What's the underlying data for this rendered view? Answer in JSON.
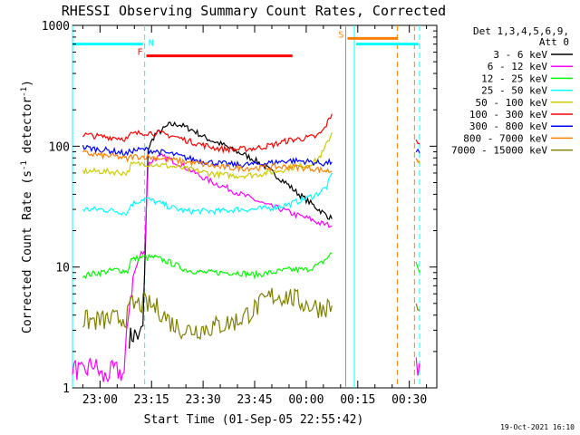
{
  "chart_data": {
    "type": "line",
    "title": "RHESSI Observing Summary Count Rates, Corrected",
    "xlabel": "Start Time (01-Sep-05 22:55:42)",
    "ylabel": "Corrected Count Rate (s⁻¹ detector⁻¹)",
    "ylabel_main": "Corrected Count Rate (s",
    "ylabel_sup1": "-1",
    "ylabel_mid": " detector",
    "ylabel_sup2": "-1",
    "ylabel_end": ")",
    "y_scale": "log",
    "ylim": [
      1,
      1000
    ],
    "x_unit": "minutes after 23:00 UT",
    "xlim": [
      -8,
      98
    ],
    "x_ticks": [
      {
        "value": 0,
        "label": "23:00"
      },
      {
        "value": 15,
        "label": "23:15"
      },
      {
        "value": 30,
        "label": "23:30"
      },
      {
        "value": 45,
        "label": "23:45"
      },
      {
        "value": 60,
        "label": "00:00"
      },
      {
        "value": 75,
        "label": "00:15"
      },
      {
        "value": 90,
        "label": "00:30"
      }
    ],
    "y_ticks": [
      {
        "value": 1,
        "label": "1"
      },
      {
        "value": 10,
        "label": "10"
      },
      {
        "value": 100,
        "label": "100"
      },
      {
        "value": 1000,
        "label": "1000"
      }
    ],
    "legend_header": [
      "Det 1,3,4,5,6,9,",
      "Att 0"
    ],
    "legend_placement": "right",
    "series": [
      {
        "name": "3 - 6 keV",
        "color": "#000000",
        "x": [
          8.5,
          10.5,
          11.5,
          12.5,
          13,
          14,
          16,
          18,
          20,
          23,
          25,
          27,
          30,
          33,
          36,
          39,
          42,
          45,
          48,
          51,
          54,
          57,
          60,
          63,
          65,
          67.5
        ],
        "values": [
          2.6,
          2.8,
          2.6,
          3.2,
          9,
          95,
          125,
          135,
          150,
          152,
          143,
          136,
          120,
          110,
          102,
          92,
          85,
          77,
          68,
          58,
          50,
          42,
          36,
          31,
          28,
          25
        ],
        "gap_after": []
      },
      {
        "name": "6 - 12 keV",
        "color": "#ff00ff",
        "x": [
          -8,
          -5,
          -2,
          1,
          4,
          7,
          8.5,
          10,
          12,
          13,
          14,
          16,
          18,
          20,
          23,
          26,
          29,
          33,
          37,
          41,
          45,
          49,
          53,
          57,
          61,
          64,
          67.5,
          92,
          93
        ],
        "values": [
          1.5,
          1.3,
          1.6,
          1.2,
          1.4,
          1.3,
          5,
          9,
          13,
          14,
          70,
          80,
          82,
          78,
          72,
          64,
          57,
          50,
          45,
          40,
          36,
          32,
          30,
          27,
          25,
          23,
          22,
          1.5,
          1.6
        ],
        "gap_after": [
          26
        ]
      },
      {
        "name": "12 - 25 keV",
        "color": "#00ff00",
        "x": [
          -5,
          0,
          5,
          8,
          9,
          12,
          16,
          20,
          25,
          30,
          35,
          40,
          45,
          50,
          55,
          60,
          64,
          67.5,
          92,
          93
        ],
        "values": [
          8.5,
          9,
          9.5,
          9.2,
          11.5,
          12,
          12,
          11,
          9.5,
          9,
          9,
          9,
          8.6,
          9,
          9.5,
          9.5,
          10.5,
          13,
          11,
          9
        ],
        "gap_after": [
          17
        ]
      },
      {
        "name": "25 - 50 keV",
        "color": "#00ffff",
        "x": [
          -5,
          0,
          5,
          8,
          9,
          13,
          17,
          21,
          25,
          30,
          35,
          40,
          45,
          50,
          55,
          60,
          63,
          66,
          67.5
        ],
        "values": [
          30,
          30,
          29,
          28,
          33,
          37,
          34,
          31,
          29,
          29,
          29,
          30,
          30,
          31,
          33,
          37,
          40,
          46,
          60
        ],
        "gap_after": []
      },
      {
        "name": "50 - 100 keV",
        "color": "#cccc00",
        "x": [
          -5,
          0,
          5,
          8,
          9,
          13,
          17,
          21,
          25,
          30,
          35,
          40,
          45,
          50,
          55,
          60,
          63,
          65,
          67.5,
          92,
          93
        ],
        "values": [
          62,
          62,
          61,
          60,
          70,
          72,
          70,
          68,
          65,
          61,
          58,
          57,
          58,
          61,
          66,
          70,
          76,
          90,
          130,
          80,
          72
        ],
        "gap_after": [
          18
        ]
      },
      {
        "name": "100 - 300 keV",
        "color": "#ff0000",
        "x": [
          -5,
          0,
          5,
          8,
          9,
          13,
          17,
          21,
          25,
          30,
          35,
          40,
          45,
          50,
          55,
          60,
          63,
          65,
          67.5,
          92,
          93
        ],
        "values": [
          125,
          120,
          118,
          115,
          125,
          130,
          128,
          122,
          112,
          102,
          95,
          94,
          96,
          102,
          112,
          117,
          120,
          135,
          185,
          115,
          105
        ],
        "gap_after": [
          18
        ]
      },
      {
        "name": "300 - 800 keV",
        "color": "#0000ff",
        "x": [
          -5,
          0,
          5,
          8,
          9,
          13,
          17,
          21,
          25,
          30,
          35,
          40,
          45,
          50,
          55,
          60,
          63,
          65,
          67.5,
          92,
          93
        ],
        "values": [
          98,
          94,
          90,
          86,
          92,
          94,
          90,
          86,
          80,
          75,
          72,
          70,
          71,
          73,
          76,
          75,
          73,
          72,
          74,
          92,
          88
        ],
        "gap_after": [
          18
        ]
      },
      {
        "name": "800 - 7000 keV",
        "color": "#ff8000",
        "x": [
          -5,
          0,
          5,
          8,
          9,
          13,
          17,
          21,
          25,
          30,
          35,
          40,
          45,
          50,
          55,
          60,
          63,
          65,
          67.5,
          92,
          93
        ],
        "values": [
          88,
          84,
          82,
          78,
          82,
          82,
          80,
          77,
          74,
          71,
          67,
          66,
          66,
          67,
          68,
          66,
          65,
          63,
          62,
          80,
          75
        ],
        "gap_after": [
          18
        ]
      },
      {
        "name": "7000 - 15000 keV",
        "color": "#808000",
        "x": [
          -5,
          0,
          5,
          8,
          9,
          13,
          17,
          21,
          25,
          30,
          35,
          40,
          45,
          50,
          55,
          60,
          64,
          67.5,
          92,
          93
        ],
        "values": [
          3.6,
          3.6,
          3.7,
          3.9,
          4.8,
          5,
          4.5,
          3.4,
          3.0,
          3.1,
          3.3,
          3.6,
          4.5,
          5.8,
          5.7,
          4.9,
          4.6,
          4.8,
          4.6,
          4.4
        ],
        "gap_after": [
          17
        ]
      }
    ],
    "annotations": [
      {
        "kind": "bar",
        "label": "N",
        "color": "#00ffff",
        "y": 700,
        "x": [
          -8,
          12.5
        ]
      },
      {
        "kind": "bar",
        "label": "F",
        "color": "#ff0000",
        "y": 560,
        "x": [
          13.5,
          56
        ]
      },
      {
        "kind": "bar",
        "label": "S",
        "color": "#ff8000",
        "y": 780,
        "x": [
          72,
          86.5
        ]
      },
      {
        "kind": "bar",
        "label": "",
        "color": "#00ffff",
        "y": 700,
        "x": [
          74.5,
          92.5
        ]
      }
    ],
    "vlines": [
      {
        "x": -8,
        "color": "#00ffff",
        "style": "solid"
      },
      {
        "x": 13,
        "color": "#00ffff",
        "style": "dashed"
      },
      {
        "x": 71.5,
        "color": "#ff8000",
        "style": "solid"
      },
      {
        "x": 74,
        "color": "#00ffff",
        "style": "solid"
      },
      {
        "x": 86.5,
        "color": "#ff8000",
        "style": "dashed"
      },
      {
        "x": 91.5,
        "color": "#ff8000",
        "style": "dashed"
      },
      {
        "x": 93,
        "color": "#00ffff",
        "style": "dashed"
      }
    ]
  },
  "timestamp": "19-Oct-2021 16:10"
}
